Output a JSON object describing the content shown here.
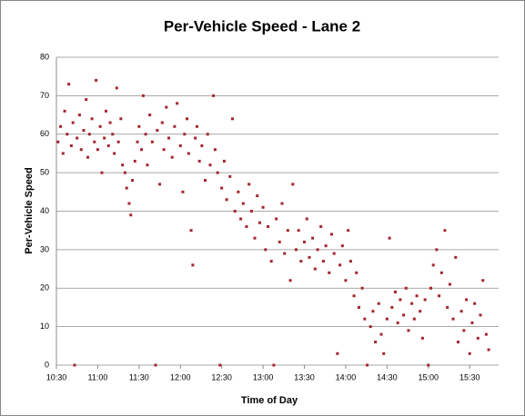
{
  "chart_data": {
    "type": "scatter",
    "title": "Per-Vehicle Speed - Lane 2",
    "x_label": "Time of Day",
    "y_label": "Per-Vehicle Speed",
    "color": "#a3262a",
    "grid": true,
    "xlim": [
      10.5,
      15.85
    ],
    "ylim": [
      0,
      80
    ],
    "xticks": [
      {
        "value": 10.5,
        "label": "10:30"
      },
      {
        "value": 11,
        "label": "11:00"
      },
      {
        "value": 11.5,
        "label": "11:30"
      },
      {
        "value": 12,
        "label": "12:00"
      },
      {
        "value": 12.5,
        "label": "12:30"
      },
      {
        "value": 13,
        "label": "13:00"
      },
      {
        "value": 13.5,
        "label": "13:30"
      },
      {
        "value": 14,
        "label": "14:00"
      },
      {
        "value": 14.5,
        "label": "14:30"
      },
      {
        "value": 15,
        "label": "15:00"
      },
      {
        "value": 15.5,
        "label": "15:30"
      }
    ],
    "yticks": [
      0,
      10,
      20,
      30,
      40,
      50,
      60,
      70,
      80
    ],
    "x": [
      10.52,
      10.55,
      10.58,
      10.6,
      10.63,
      10.65,
      10.68,
      10.7,
      10.72,
      10.75,
      10.78,
      10.8,
      10.83,
      10.86,
      10.88,
      10.9,
      10.93,
      10.96,
      10.98,
      11.0,
      11.03,
      11.05,
      11.08,
      11.1,
      11.13,
      11.15,
      11.18,
      11.2,
      11.23,
      11.25,
      11.28,
      11.3,
      11.33,
      11.35,
      11.38,
      11.4,
      11.42,
      11.45,
      11.48,
      11.5,
      11.53,
      11.55,
      11.58,
      11.6,
      11.63,
      11.66,
      11.7,
      11.72,
      11.75,
      11.78,
      11.8,
      11.83,
      11.86,
      11.9,
      11.93,
      11.96,
      12.0,
      12.03,
      12.05,
      12.08,
      12.1,
      12.13,
      12.15,
      12.18,
      12.2,
      12.23,
      12.26,
      12.3,
      12.33,
      12.36,
      12.4,
      12.42,
      12.45,
      12.48,
      12.5,
      12.53,
      12.56,
      12.6,
      12.63,
      12.66,
      12.7,
      12.73,
      12.76,
      12.8,
      12.83,
      12.86,
      12.9,
      12.93,
      12.96,
      13.0,
      13.03,
      13.06,
      13.1,
      13.13,
      13.16,
      13.2,
      13.23,
      13.26,
      13.3,
      13.33,
      13.36,
      13.4,
      13.43,
      13.46,
      13.5,
      13.53,
      13.56,
      13.6,
      13.63,
      13.66,
      13.7,
      13.73,
      13.76,
      13.8,
      13.83,
      13.86,
      13.9,
      13.93,
      13.96,
      14.0,
      14.03,
      14.06,
      14.1,
      14.13,
      14.16,
      14.2,
      14.23,
      14.26,
      14.3,
      14.33,
      14.36,
      14.4,
      14.43,
      14.46,
      14.5,
      14.53,
      14.56,
      14.6,
      14.63,
      14.66,
      14.7,
      14.73,
      14.76,
      14.8,
      14.83,
      14.86,
      14.9,
      14.93,
      14.96,
      15.0,
      15.03,
      15.06,
      15.1,
      15.13,
      15.16,
      15.2,
      15.23,
      15.26,
      15.3,
      15.33,
      15.36,
      15.4,
      15.43,
      15.46,
      15.5,
      15.53,
      15.56,
      15.6,
      15.63,
      15.66,
      15.7,
      15.73
    ],
    "values": [
      58,
      62,
      55,
      66,
      60,
      73,
      57,
      63,
      0,
      59,
      65,
      56,
      61,
      69,
      54,
      60,
      64,
      58,
      74,
      56,
      62,
      50,
      59,
      66,
      57,
      63,
      60,
      55,
      72,
      58,
      64,
      52,
      50,
      46,
      42,
      39,
      48,
      53,
      58,
      62,
      56,
      70,
      60,
      52,
      65,
      58,
      0,
      61,
      47,
      63,
      56,
      67,
      59,
      54,
      62,
      68,
      57,
      45,
      60,
      64,
      55,
      35,
      26,
      59,
      62,
      53,
      57,
      48,
      60,
      52,
      70,
      56,
      50,
      0,
      46,
      53,
      43,
      49,
      64,
      40,
      45,
      38,
      42,
      36,
      47,
      40,
      33,
      44,
      37,
      41,
      30,
      36,
      27,
      0,
      38,
      32,
      42,
      29,
      35,
      22,
      47,
      30,
      35,
      27,
      32,
      38,
      28,
      33,
      25,
      30,
      36,
      27,
      31,
      24,
      34,
      29,
      3,
      26,
      31,
      22,
      35,
      27,
      18,
      24,
      15,
      20,
      12,
      0,
      10,
      14,
      6,
      16,
      8,
      3,
      12,
      33,
      15,
      19,
      11,
      17,
      13,
      20,
      9,
      16,
      12,
      18,
      14,
      7,
      17,
      0,
      20,
      26,
      30,
      18,
      24,
      35,
      15,
      21,
      12,
      28,
      6,
      14,
      9,
      17,
      3,
      11,
      16,
      7,
      13,
      22,
      8,
      4
    ]
  }
}
